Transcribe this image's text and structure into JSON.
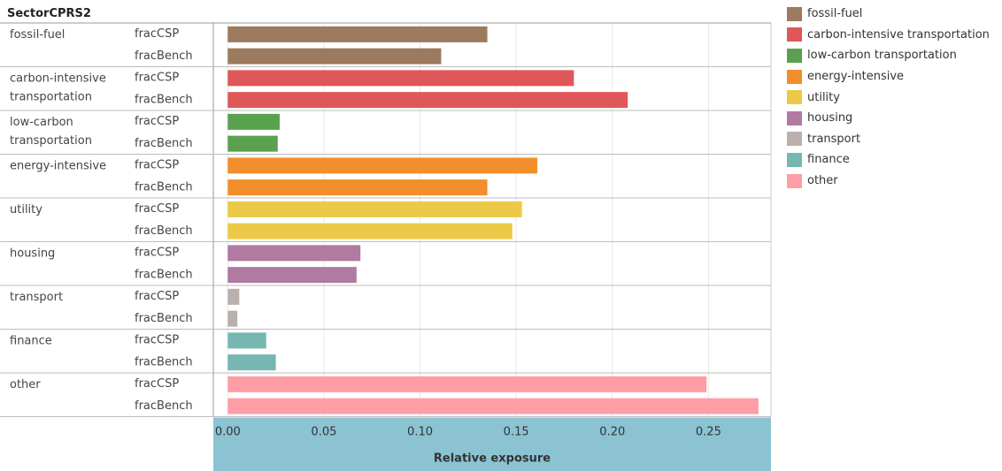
{
  "chart_data": {
    "type": "bar",
    "orientation": "horizontal",
    "row_header": "SectorCPRS2",
    "xlabel": "Relative exposure",
    "xlim": [
      -0.0075,
      0.2825
    ],
    "xticks": [
      0.0,
      0.05,
      0.1,
      0.15,
      0.2,
      0.25
    ],
    "xtick_labels": [
      "0.00",
      "0.05",
      "0.10",
      "0.15",
      "0.20",
      "0.25"
    ],
    "grid": true,
    "legend_position": "right",
    "measures": [
      "fracCSP",
      "fracBench"
    ],
    "groups": [
      {
        "name": "fossil-fuel",
        "label_lines": [
          "fossil-fuel"
        ],
        "color": "#9c7a5e",
        "values": [
          0.135,
          0.111
        ]
      },
      {
        "name": "carbon-intensive transportation",
        "label_lines": [
          "carbon-intensive",
          "transportation"
        ],
        "color": "#e05759",
        "values": [
          0.18,
          0.208
        ]
      },
      {
        "name": "low-carbon transportation",
        "label_lines": [
          "low-carbon",
          "transportation"
        ],
        "color": "#59a14f",
        "values": [
          0.027,
          0.026
        ]
      },
      {
        "name": "energy-intensive",
        "label_lines": [
          "energy-intensive"
        ],
        "color": "#f28e2b",
        "values": [
          0.161,
          0.135
        ]
      },
      {
        "name": "utility",
        "label_lines": [
          "utility"
        ],
        "color": "#edc948",
        "values": [
          0.153,
          0.148
        ]
      },
      {
        "name": "housing",
        "label_lines": [
          "housing"
        ],
        "color": "#b07aa1",
        "values": [
          0.069,
          0.067
        ]
      },
      {
        "name": "transport",
        "label_lines": [
          "transport"
        ],
        "color": "#bab0ac",
        "values": [
          0.006,
          0.005
        ]
      },
      {
        "name": "finance",
        "label_lines": [
          "finance"
        ],
        "color": "#76b7b2",
        "values": [
          0.02,
          0.025
        ]
      },
      {
        "name": "other",
        "label_lines": [
          "other"
        ],
        "color": "#ff9da7",
        "values": [
          0.249,
          0.276
        ]
      }
    ]
  },
  "legend": [
    {
      "label": "fossil-fuel",
      "color": "#9c7a5e"
    },
    {
      "label": "carbon-intensive transportation",
      "color": "#e05759"
    },
    {
      "label": "low-carbon transportation",
      "color": "#59a14f"
    },
    {
      "label": "energy-intensive",
      "color": "#f28e2b"
    },
    {
      "label": "utility",
      "color": "#edc948"
    },
    {
      "label": "housing",
      "color": "#b07aa1"
    },
    {
      "label": "transport",
      "color": "#bab0ac"
    },
    {
      "label": "finance",
      "color": "#76b7b2"
    },
    {
      "label": "other",
      "color": "#ff9da7"
    }
  ],
  "axis_band_color": "#8bc3d3"
}
